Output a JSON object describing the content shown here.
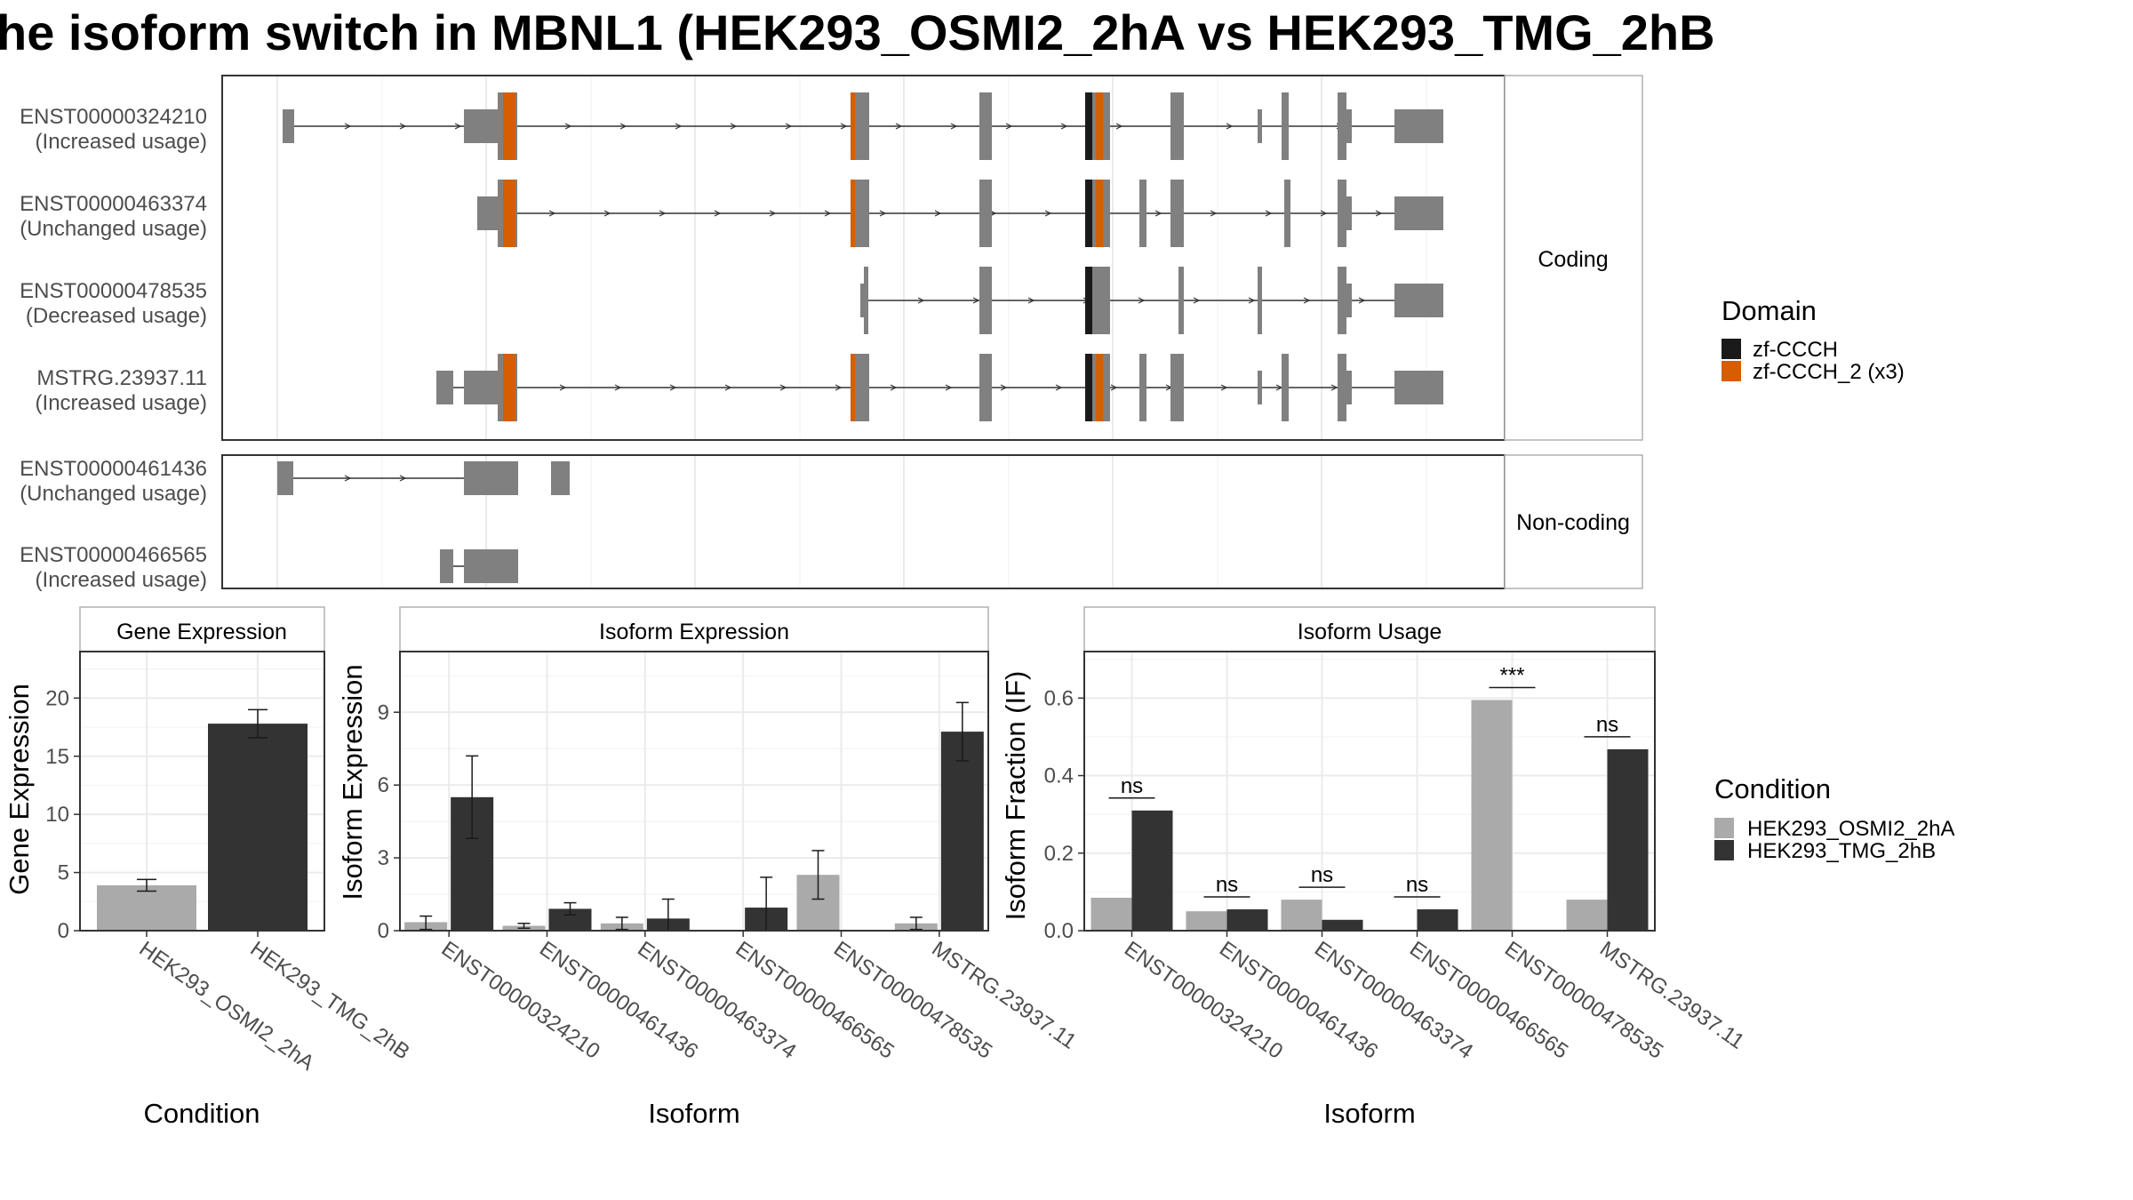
{
  "title": "he isoform switch in MBNL1 (HEK293_OSMI2_2hA vs HEK293_TMG_2hB",
  "colors": {
    "exon": "#808080",
    "domain_zf_ccch": "#1a1a1a",
    "domain_zf_ccch_2": "#d55e00",
    "cond_a": "#aaaaaa",
    "cond_b": "#333333",
    "grid": "#ebebeb",
    "strip_bg": "#ffffff"
  },
  "structure": {
    "panels": [
      {
        "label": "Coding",
        "transcripts": [
          {
            "id": "ENST00000324210",
            "usage": "(Increased usage)"
          },
          {
            "id": "ENST00000463374",
            "usage": "(Unchanged usage)"
          },
          {
            "id": "ENST00000478535",
            "usage": "(Decreased usage)"
          },
          {
            "id": "MSTRG.23937.11",
            "usage": "(Increased usage)"
          }
        ]
      },
      {
        "label": "Non-coding",
        "transcripts": [
          {
            "id": "ENST00000461436",
            "usage": "(Unchanged usage)"
          },
          {
            "id": "ENST00000466565",
            "usage": "(Increased usage)"
          }
        ]
      }
    ],
    "legend": {
      "title": "Domain",
      "items": [
        {
          "label": "zf-CCCH",
          "color": "#1a1a1a"
        },
        {
          "label": "zf-CCCH_2 (x3)",
          "color": "#d55e00"
        }
      ]
    }
  },
  "chart_data": [
    {
      "type": "bar",
      "title": "Gene Expression",
      "xlabel": "Condition",
      "ylabel": "Gene Expression",
      "categories": [
        "HEK293_OSMI2_2hA",
        "HEK293_TMG_2hB"
      ],
      "values": [
        3.9,
        17.8
      ],
      "errors": [
        [
          3.4,
          4.4
        ],
        [
          16.6,
          19.0
        ]
      ],
      "ylim": [
        0,
        24
      ],
      "yticks": [
        "0",
        "5",
        "10",
        "15",
        "20"
      ]
    },
    {
      "type": "bar",
      "title": "Isoform Expression",
      "xlabel": "Isoform",
      "ylabel": "Isoform Expression",
      "categories": [
        "ENST00000324210",
        "ENST00000461436",
        "ENST00000463374",
        "ENST00000466565",
        "ENST00000478535",
        "MSTRG.23937.11"
      ],
      "series": [
        {
          "name": "HEK293_OSMI2_2hA",
          "values": [
            0.35,
            0.2,
            0.3,
            0.0,
            2.3,
            0.3
          ],
          "errors": [
            [
              0.05,
              0.6
            ],
            [
              0.1,
              0.3
            ],
            [
              0.05,
              0.55
            ],
            [
              0.0,
              0.0
            ],
            [
              1.3,
              3.3
            ],
            [
              0.05,
              0.55
            ]
          ]
        },
        {
          "name": "HEK293_TMG_2hB",
          "values": [
            5.5,
            0.9,
            0.5,
            0.95,
            0.0,
            8.2
          ],
          "errors": [
            [
              3.8,
              7.2
            ],
            [
              0.65,
              1.15
            ],
            [
              0.0,
              1.3
            ],
            [
              0.0,
              2.2
            ],
            [
              0.0,
              0.0
            ],
            [
              7.0,
              9.4
            ]
          ]
        }
      ],
      "ylim": [
        0,
        11.5
      ],
      "yticks": [
        "0",
        "3",
        "6",
        "9"
      ]
    },
    {
      "type": "bar",
      "title": "Isoform Usage",
      "xlabel": "Isoform",
      "ylabel": "Isoform Fraction (IF)",
      "categories": [
        "ENST00000324210",
        "ENST00000461436",
        "ENST00000463374",
        "ENST00000466565",
        "ENST00000478535",
        "MSTRG.23937.11"
      ],
      "series": [
        {
          "name": "HEK293_OSMI2_2hA",
          "values": [
            0.085,
            0.05,
            0.08,
            0.0,
            0.595,
            0.08
          ]
        },
        {
          "name": "HEK293_TMG_2hB",
          "values": [
            0.31,
            0.055,
            0.028,
            0.055,
            0.0,
            0.468
          ]
        }
      ],
      "significance": [
        "ns",
        "ns",
        "ns",
        "ns",
        "***",
        "ns"
      ],
      "ylim": [
        0,
        0.72
      ],
      "yticks": [
        "0.0",
        "0.2",
        "0.4",
        "0.6"
      ]
    }
  ],
  "condition_legend": {
    "title": "Condition",
    "items": [
      {
        "label": "HEK293_OSMI2_2hA",
        "color": "#aaaaaa"
      },
      {
        "label": "HEK293_TMG_2hB",
        "color": "#333333"
      }
    ]
  }
}
